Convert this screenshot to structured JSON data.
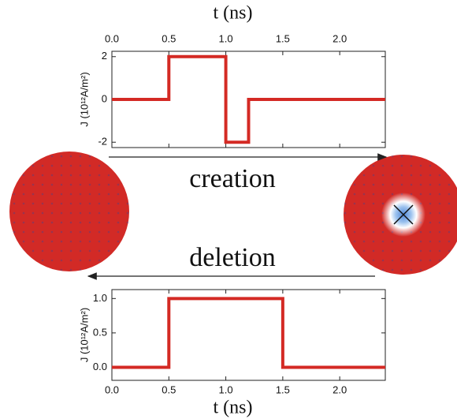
{
  "chart_data": [
    {
      "type": "line",
      "x_label": "t (ns)",
      "x_axis_position": "top",
      "y_label": "J (10¹²A/m²)",
      "x": [
        0,
        0.5,
        0.5,
        1.0,
        1.0,
        1.2,
        1.2,
        2.4
      ],
      "values": [
        0,
        0,
        2,
        2,
        -2,
        -2,
        0,
        0
      ],
      "color": "#d42a24",
      "xlim": [
        0,
        2.4
      ],
      "xticks": [
        {
          "value": 0,
          "label": "0.0"
        },
        {
          "value": 0.5,
          "label": "0.5"
        },
        {
          "value": 1,
          "label": "1.0"
        },
        {
          "value": 1.5,
          "label": "1.5"
        },
        {
          "value": 2,
          "label": "2.0"
        }
      ],
      "ylim": [
        -2.25,
        2.25
      ],
      "yticks": [
        -2,
        0,
        2
      ],
      "grid": false
    },
    {
      "type": "line",
      "x_label": "t (ns)",
      "x_axis_position": "bottom",
      "y_label": "J (10¹²A/m²)",
      "x": [
        0,
        0.5,
        0.5,
        1.5,
        1.5,
        2.4
      ],
      "values": [
        0,
        0,
        1,
        1,
        0,
        0
      ],
      "color": "#d42a24",
      "xlim": [
        0,
        2.4
      ],
      "xticks": [
        {
          "value": 0,
          "label": "0.0"
        },
        {
          "value": 0.5,
          "label": "0.5"
        },
        {
          "value": 1,
          "label": "1.0"
        },
        {
          "value": 1.5,
          "label": "1.5"
        },
        {
          "value": 2,
          "label": "2.0"
        }
      ],
      "ylim": [
        -0.19,
        1.13
      ],
      "yticks": [
        {
          "value": 0,
          "label": "0.0"
        },
        {
          "value": 0.5,
          "label": "0.5"
        },
        {
          "value": 1,
          "label": "1.0"
        }
      ],
      "grid": false
    }
  ],
  "labels": {
    "creation": "creation",
    "deletion": "deletion"
  }
}
